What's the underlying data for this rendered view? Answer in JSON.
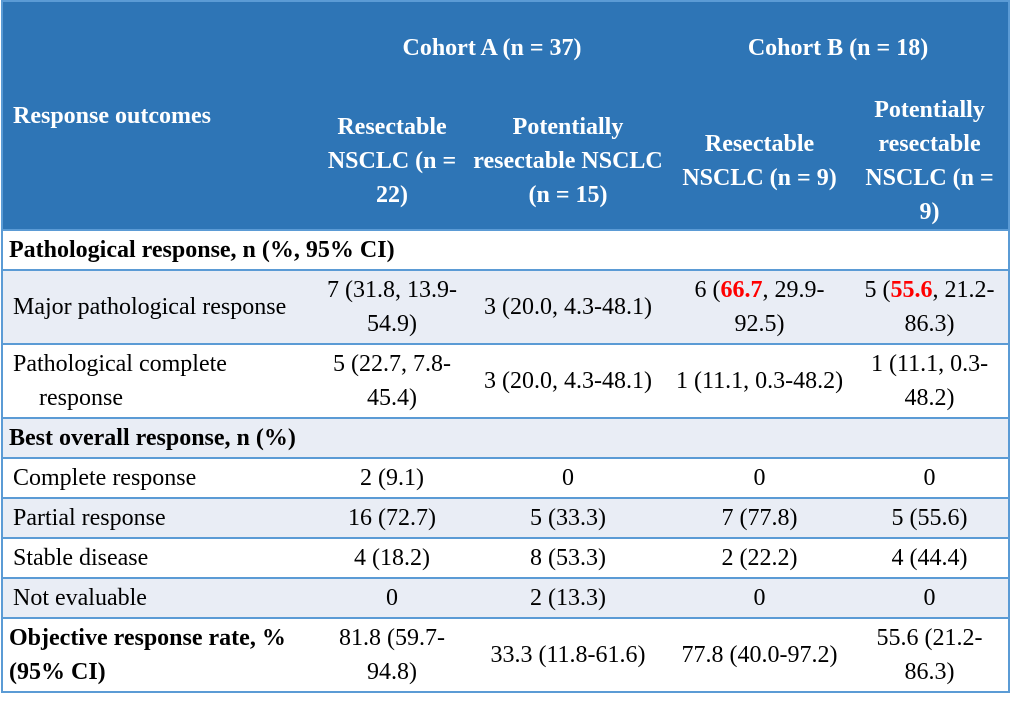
{
  "header": {
    "row_label": "Response outcomes",
    "cohort_a": "Cohort A (n = 37)",
    "cohort_b": "Cohort B (n = 18)",
    "subcols": [
      "Resectable NSCLC (n = 22)",
      "Potentially resectable NSCLC (n = 15)",
      "Resectable NSCLC (n = 9)",
      "Potentially resectable NSCLC (n = 9)"
    ]
  },
  "sections": {
    "pathological": "Pathological response, n (%, 95% CI)",
    "best": "Best overall response, n (%)"
  },
  "rows": {
    "mpr": {
      "label": "Major pathological response",
      "a1": "7 (31.8, 13.9-54.9)",
      "a2": "3 (20.0, 4.3-48.1)",
      "b1_pre": "6 (",
      "b1_hl": "66.7",
      "b1_post": ", 29.9-92.5)",
      "b2_pre": "5 (",
      "b2_hl": "55.6",
      "b2_post": ", 21.2-86.3)"
    },
    "pcr": {
      "label": "Pathological complete response",
      "v": [
        "5 (22.7, 7.8-45.4)",
        "3 (20.0, 4.3-48.1)",
        "1 (11.1, 0.3-48.2)",
        "1 (11.1, 0.3-48.2)"
      ]
    },
    "cr": {
      "label": "Complete response",
      "v": [
        "2 (9.1)",
        "0",
        "0",
        "0"
      ]
    },
    "pr": {
      "label": "Partial response",
      "v": [
        "16 (72.7)",
        "5 (33.3)",
        "7 (77.8)",
        "5 (55.6)"
      ]
    },
    "sd": {
      "label": "Stable disease",
      "v": [
        "4 (18.2)",
        "8 (53.3)",
        "2 (22.2)",
        "4 (44.4)"
      ]
    },
    "ne": {
      "label": "Not evaluable",
      "v": [
        "0",
        "2 (13.3)",
        "0",
        "0"
      ]
    },
    "orr": {
      "label": "Objective response rate, % (95% CI)",
      "v": [
        "81.8 (59.7-94.8)",
        "33.3 (11.8-61.6)",
        "77.8 (40.0-97.2)",
        "55.6 (21.2-86.3)"
      ]
    }
  },
  "colors": {
    "header_bg": "#2e75b6",
    "border": "#5b9bd5",
    "alt_row": "#e9edf5",
    "highlight": "#ff0000"
  }
}
